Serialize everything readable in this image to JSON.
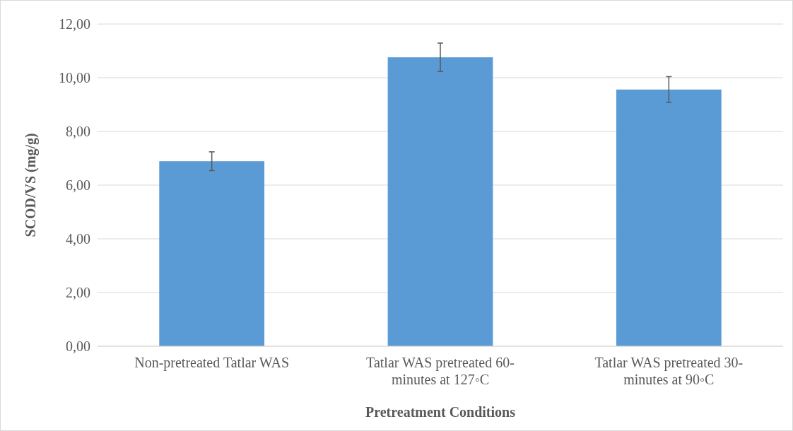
{
  "chart_data": {
    "type": "bar",
    "xlabel": "Pretreatment Conditions",
    "ylabel": "SCOD/VS (mg/g)",
    "categories": [
      "Non-pretreated Tatlar WAS",
      "Tatlar WAS pretreated 60-minutes at 127◦C",
      "Tatlar WAS pretreated 30-minutes at 90◦C"
    ],
    "values": [
      6.89,
      10.76,
      9.56
    ],
    "errors": [
      0.35,
      0.53,
      0.48
    ],
    "color": "#5b9bd5",
    "ylim": [
      0,
      12
    ],
    "yticks": [
      {
        "value": 0,
        "label": "0,00"
      },
      {
        "value": 2,
        "label": "2,00"
      },
      {
        "value": 4,
        "label": "4,00"
      },
      {
        "value": 6,
        "label": "6,00"
      },
      {
        "value": 8,
        "label": "8,00"
      },
      {
        "value": 10,
        "label": "10,00"
      },
      {
        "value": 12,
        "label": "12,00"
      }
    ],
    "grid": "y"
  }
}
